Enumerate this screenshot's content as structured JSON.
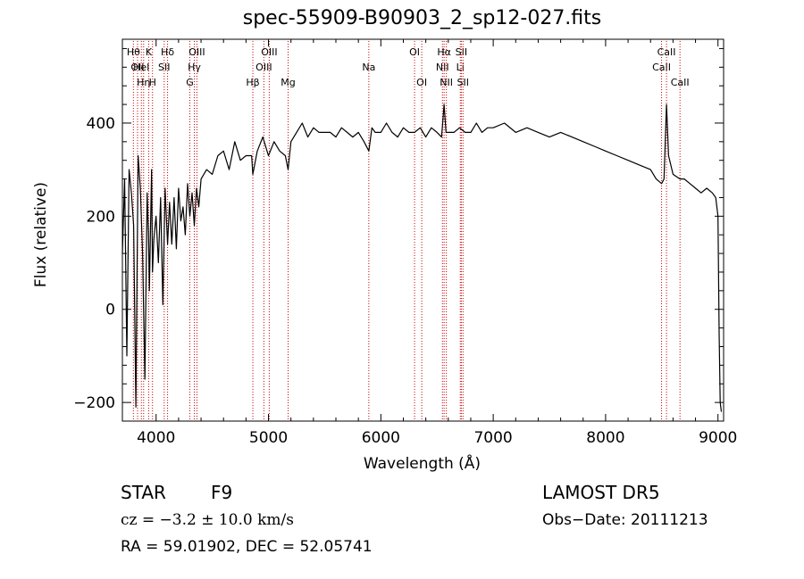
{
  "chart_data": {
    "type": "line",
    "title": "spec-55909-B90903_2_sp12-027.fits",
    "xlabel": "Wavelength (Å)",
    "ylabel": "Flux (relative)",
    "xlim": [
      3700,
      9050
    ],
    "ylim": [
      -240,
      580
    ],
    "xticks": [
      4000,
      5000,
      6000,
      7000,
      8000,
      9000
    ],
    "yticks": [
      -200,
      0,
      200,
      400
    ],
    "grid": false,
    "line_color": "#000000",
    "marker_color": "#cc0000",
    "series": [
      {
        "x": [
          3700,
          3720,
          3740,
          3760,
          3780,
          3800,
          3820,
          3840,
          3860,
          3880,
          3900,
          3920,
          3933,
          3940,
          3960,
          3968,
          3980,
          4000,
          4020,
          4040,
          4060,
          4080,
          4102,
          4120,
          4140,
          4160,
          4180,
          4200,
          4220,
          4240,
          4260,
          4280,
          4300,
          4320,
          4340,
          4360,
          4380,
          4400,
          4450,
          4500,
          4550,
          4600,
          4650,
          4700,
          4750,
          4800,
          4850,
          4861,
          4900,
          4950,
          5000,
          5050,
          5100,
          5150,
          5175,
          5200,
          5250,
          5300,
          5350,
          5400,
          5450,
          5500,
          5550,
          5600,
          5650,
          5700,
          5750,
          5800,
          5850,
          5893,
          5920,
          5950,
          6000,
          6050,
          6100,
          6150,
          6200,
          6250,
          6300,
          6350,
          6400,
          6450,
          6500,
          6540,
          6563,
          6580,
          6600,
          6650,
          6700,
          6750,
          6800,
          6850,
          6900,
          6950,
          7000,
          7100,
          7200,
          7300,
          7400,
          7500,
          7600,
          7700,
          7800,
          7900,
          8000,
          8100,
          8200,
          8300,
          8400,
          8450,
          8498,
          8520,
          8542,
          8560,
          8600,
          8662,
          8700,
          8750,
          8800,
          8850,
          8900,
          8950,
          8980,
          9000,
          9010,
          9020,
          9030
        ],
        "y": [
          120,
          280,
          -100,
          300,
          250,
          180,
          -210,
          330,
          260,
          120,
          -150,
          250,
          160,
          40,
          300,
          80,
          150,
          200,
          100,
          240,
          10,
          260,
          140,
          230,
          140,
          240,
          130,
          260,
          190,
          220,
          160,
          270,
          200,
          250,
          180,
          260,
          220,
          280,
          300,
          290,
          330,
          340,
          300,
          360,
          320,
          330,
          330,
          290,
          340,
          370,
          330,
          360,
          340,
          330,
          300,
          360,
          380,
          400,
          370,
          390,
          380,
          380,
          380,
          370,
          390,
          380,
          370,
          380,
          360,
          340,
          390,
          380,
          380,
          400,
          380,
          370,
          390,
          380,
          380,
          390,
          370,
          390,
          380,
          370,
          440,
          380,
          380,
          380,
          390,
          380,
          380,
          400,
          380,
          390,
          390,
          400,
          380,
          390,
          380,
          370,
          380,
          370,
          360,
          350,
          340,
          330,
          320,
          310,
          300,
          280,
          270,
          280,
          440,
          330,
          290,
          280,
          280,
          270,
          260,
          250,
          260,
          250,
          240,
          200,
          -50,
          -200,
          -220
        ]
      }
    ],
    "line_markers": [
      {
        "x": 3798,
        "label": "Hθ",
        "row": 1
      },
      {
        "x": 3835,
        "label": "OII",
        "row": 2
      },
      {
        "x": 3869,
        "label": "HeI",
        "row": 2
      },
      {
        "x": 3889,
        "label": "Hη",
        "row": 3
      },
      {
        "x": 3934,
        "label": "K",
        "row": 1
      },
      {
        "x": 3968,
        "label": "H",
        "row": 3
      },
      {
        "x": 4072,
        "label": "SII",
        "row": 2
      },
      {
        "x": 4102,
        "label": "Hδ",
        "row": 1
      },
      {
        "x": 4300,
        "label": "G",
        "row": 3
      },
      {
        "x": 4340,
        "label": "Hγ",
        "row": 2
      },
      {
        "x": 4363,
        "label": "OIII",
        "row": 1
      },
      {
        "x": 4861,
        "label": "Hβ",
        "row": 3
      },
      {
        "x": 4959,
        "label": "OIII",
        "row": 2
      },
      {
        "x": 5007,
        "label": "OIII",
        "row": 1
      },
      {
        "x": 5175,
        "label": "Mg",
        "row": 3
      },
      {
        "x": 5893,
        "label": "Na",
        "row": 2
      },
      {
        "x": 6300,
        "label": "OI",
        "row": 1
      },
      {
        "x": 6364,
        "label": "OI",
        "row": 3
      },
      {
        "x": 6548,
        "label": "NII",
        "row": 2
      },
      {
        "x": 6563,
        "label": "Hα",
        "row": 1
      },
      {
        "x": 6583,
        "label": "NII",
        "row": 3
      },
      {
        "x": 6707,
        "label": "Li",
        "row": 2
      },
      {
        "x": 6716,
        "label": "SII",
        "row": 1
      },
      {
        "x": 6731,
        "label": "SII",
        "row": 3
      },
      {
        "x": 8498,
        "label": "CaII",
        "row": 2
      },
      {
        "x": 8542,
        "label": "CaII",
        "row": 1
      },
      {
        "x": 8662,
        "label": "CaII",
        "row": 3
      }
    ]
  },
  "footer": {
    "class_label": "STAR",
    "subclass": "F9",
    "cz": "cz = −3.2 ± 10.0 km/s",
    "coords": "RA =  59.01902, DEC =  52.05741",
    "survey": "LAMOST DR5",
    "obs_date": "Obs−Date: 20111213"
  }
}
